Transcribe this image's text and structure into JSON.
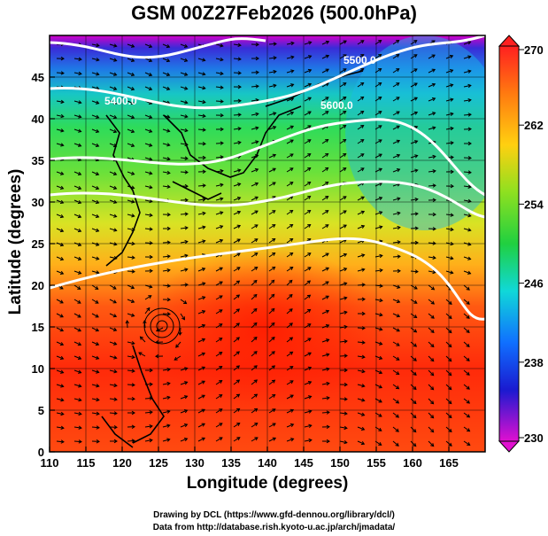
{
  "title": "GSM 00Z27Feb2026 (500.0hPa)",
  "x_axis": {
    "label": "Longitude (degrees)",
    "ticks": [
      "110",
      "115",
      "120",
      "125",
      "130",
      "135",
      "140",
      "145",
      "150",
      "155",
      "160",
      "165"
    ]
  },
  "y_axis": {
    "label": "Latitude  (degrees)",
    "ticks": [
      "0",
      "5",
      "10",
      "15",
      "20",
      "25",
      "30",
      "35",
      "40",
      "45"
    ]
  },
  "colorbar": {
    "ticks": [
      "270",
      "262",
      "254",
      "246",
      "238",
      "230"
    ],
    "min": 230,
    "max": 270
  },
  "contour_labels": [
    "5400.0",
    "5600.0",
    "5500.0"
  ],
  "credits": {
    "line1": "Drawing by DCL (https://www.gfd-dennou.org/library/dcl/)",
    "line2": "Data from http://database.rish.kyoto-u.ac.jp/arch/jmadata/"
  },
  "colors": {
    "cold": "#cc00cc",
    "warm": "#ff2200",
    "mid": "#22cc22",
    "contour": "#ffffff"
  }
}
